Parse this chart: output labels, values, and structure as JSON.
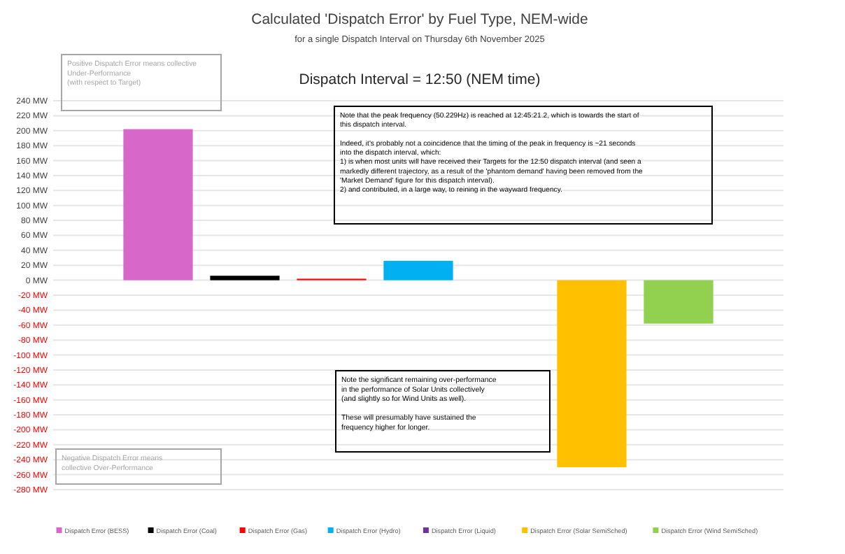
{
  "chart_data": {
    "type": "bar",
    "title": "Calculated 'Dispatch Error' by Fuel Type, NEM-wide",
    "subtitle": "for a single Dispatch Interval on Thursday 6th November 2025",
    "categories": [
      null
    ],
    "series": [
      {
        "name": "Dispatch Error (BESS)",
        "color": "#d767c8",
        "values": [
          202
        ]
      },
      {
        "name": "Dispatch Error (Coal)",
        "color": "#000000",
        "values": [
          6
        ]
      },
      {
        "name": "Dispatch Error (Gas)",
        "color": "#ff0000",
        "values": [
          2
        ]
      },
      {
        "name": "Dispatch Error (Hydro)",
        "color": "#00b0f0",
        "values": [
          26
        ]
      },
      {
        "name": "Dispatch Error (Liquid)",
        "color": "#7030a0",
        "values": [
          0
        ]
      },
      {
        "name": "Dispatch Error (Solar SemiSched)",
        "color": "#ffc000",
        "values": [
          -250
        ]
      },
      {
        "name": "Dispatch Error (Wind SemiSched)",
        "color": "#92d050",
        "values": [
          -58
        ]
      }
    ],
    "ylim": [
      -280,
      240
    ],
    "yticks": [
      {
        "value": 240,
        "label": "240 MW"
      },
      {
        "value": 220,
        "label": "220 MW"
      },
      {
        "value": 200,
        "label": "200 MW"
      },
      {
        "value": 180,
        "label": "180 MW"
      },
      {
        "value": 160,
        "label": "160 MW"
      },
      {
        "value": 140,
        "label": "140 MW"
      },
      {
        "value": 120,
        "label": "120 MW"
      },
      {
        "value": 100,
        "label": "100 MW"
      },
      {
        "value": 80,
        "label": "80 MW"
      },
      {
        "value": 60,
        "label": "60 MW"
      },
      {
        "value": 40,
        "label": "40 MW"
      },
      {
        "value": 20,
        "label": "20 MW"
      },
      {
        "value": 0,
        "label": "0 MW"
      },
      {
        "value": -20,
        "label": "-20 MW"
      },
      {
        "value": -40,
        "label": "-40 MW"
      },
      {
        "value": -60,
        "label": "-60 MW"
      },
      {
        "value": -80,
        "label": "-80 MW"
      },
      {
        "value": -100,
        "label": "-100 MW"
      },
      {
        "value": -120,
        "label": "-120 MW"
      },
      {
        "value": -140,
        "label": "-140 MW"
      },
      {
        "value": -160,
        "label": "-160 MW"
      },
      {
        "value": -180,
        "label": "-180 MW"
      },
      {
        "value": -200,
        "label": "-200 MW"
      },
      {
        "value": -220,
        "label": "-220 MW"
      },
      {
        "value": -240,
        "label": "-240 MW"
      },
      {
        "value": -260,
        "label": "-260 MW"
      },
      {
        "value": -280,
        "label": "-280 MW"
      }
    ],
    "grid": "y",
    "legend": "bottom",
    "annotations": [
      "Dispatch Interval = 12:50 (NEM time)",
      "Positive Dispatch Error means collective\nUnder-Performance\n(with respect to Target)",
      "Note that the peak frequency (50.229Hz) is reached at 12:45:21.2, which is towards the start of\nthis dispatch interval.\n\nIndeed, it's probably not a coincidence that the timing of the peak in frequency is ~21 seconds\ninto the dispatch interval, which:\n1) is when most units will have received their Targets for the 12:50 dispatch interval (and seen a\nmarkedly different trajectory, as a result of the 'phantom demand' having been removed from the\n'Market Demand' figure for this dispatch interval).\n2) and contributed, in a large way, to reining in the wayward frequency.",
      "Note the significant remaining over-performance\nin the performance of Solar Units collectively\n(and slightly so for Wind Units as well).\n\nThese will presumably have sustained the\nfrequency higher for longer.",
      "Negative Dispatch Error means\ncollective Over-Performance"
    ]
  }
}
